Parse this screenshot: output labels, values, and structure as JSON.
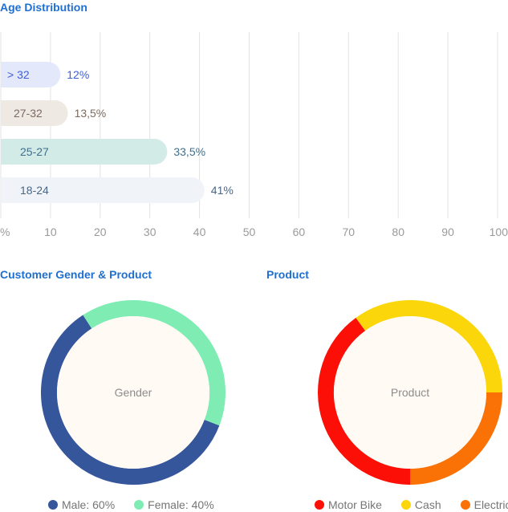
{
  "chart_data": [
    {
      "type": "bar",
      "orientation": "horizontal",
      "title": "Age Distribution",
      "categories": [
        "> 32",
        "27-32",
        "25-27",
        "18-24"
      ],
      "values": [
        12,
        13.5,
        33.5,
        41
      ],
      "value_labels": [
        "12%",
        "13,5%",
        "33,5%",
        "41%"
      ],
      "bar_colors": [
        "#e3e8fb",
        "#efe9e4",
        "#d3ebe7",
        "#f0f3f7"
      ],
      "label_colors": [
        "#3d5fd6",
        "#7a6a60",
        "#3f6f8c",
        "#4a6786"
      ],
      "xlim": [
        0,
        100
      ],
      "x_ticks": [
        "%",
        "10",
        "20",
        "30",
        "40",
        "50",
        "60",
        "70",
        "80",
        "90",
        "100"
      ],
      "grid": true
    },
    {
      "type": "pie",
      "title": "Customer Gender & Product",
      "center_label": "Gender",
      "labels": [
        "Male",
        "Female"
      ],
      "values": [
        60,
        40
      ],
      "legend_labels": [
        "Male: 60%",
        "Female: 40%"
      ],
      "colors": [
        "#36569c",
        "#7eecb3"
      ],
      "center_color": "#fffaf4",
      "legend_position": "bottom"
    },
    {
      "type": "pie",
      "title": "Product",
      "center_label": "Product",
      "labels": [
        "Motor Bike",
        "Cash",
        "Electric"
      ],
      "values": [
        40,
        35,
        25
      ],
      "legend_labels": [
        "Motor Bike",
        "Cash",
        "Electric"
      ],
      "colors": [
        "#fb0f06",
        "#fbd60a",
        "#fa7106"
      ],
      "center_color": "#fffaf4",
      "legend_position": "bottom"
    }
  ]
}
